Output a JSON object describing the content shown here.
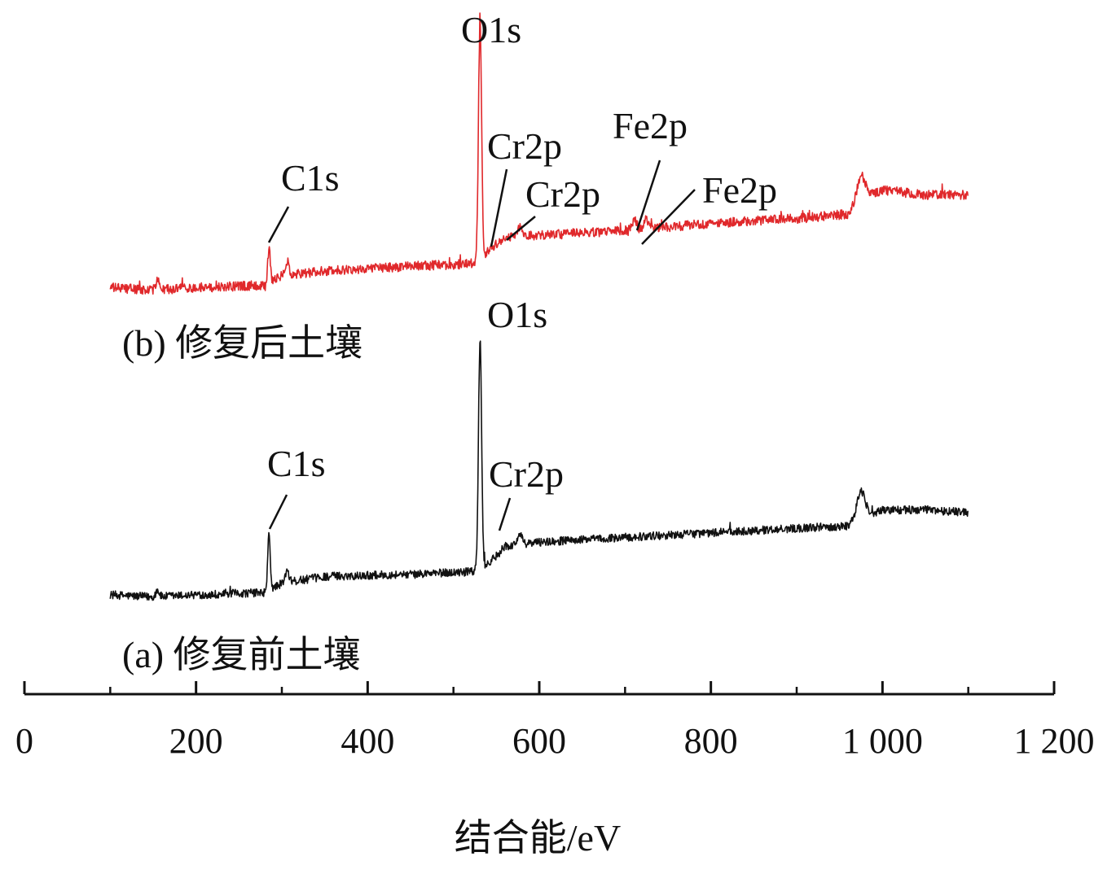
{
  "chart_data": {
    "type": "line",
    "title": "",
    "xlabel": "结合能/eV",
    "ylabel": "",
    "xlim": [
      0,
      1200
    ],
    "x_ticks": [
      {
        "value": 0,
        "label": "0"
      },
      {
        "value": 200,
        "label": "200"
      },
      {
        "value": 400,
        "label": "400"
      },
      {
        "value": 600,
        "label": "600"
      },
      {
        "value": 800,
        "label": "800"
      },
      {
        "value": 1000,
        "label": "1 000"
      },
      {
        "value": 1200,
        "label": "1 200"
      }
    ],
    "x_minor_ticks": [
      100,
      300,
      500,
      700,
      900,
      1100
    ],
    "grid": false,
    "y_axis_visible": false,
    "series": [
      {
        "id": "a",
        "name": "(a) 修复前土壤",
        "color": "#111111",
        "range": [
          100,
          1100
        ],
        "baseline_points": [
          [
            100,
            0.05
          ],
          [
            150,
            0.04
          ],
          [
            200,
            0.05
          ],
          [
            280,
            0.06
          ],
          [
            300,
            0.1
          ],
          [
            350,
            0.13
          ],
          [
            450,
            0.14
          ],
          [
            520,
            0.15
          ],
          [
            530,
            0.16
          ],
          [
            545,
            0.2
          ],
          [
            560,
            0.26
          ],
          [
            600,
            0.28
          ],
          [
            700,
            0.3
          ],
          [
            800,
            0.32
          ],
          [
            900,
            0.34
          ],
          [
            960,
            0.35
          ],
          [
            975,
            0.38
          ],
          [
            1000,
            0.42
          ],
          [
            1050,
            0.42
          ],
          [
            1100,
            0.41
          ]
        ],
        "peaks": [
          {
            "x": 285,
            "height": 0.24,
            "width": 1.5
          },
          {
            "x": 306,
            "height": 0.05,
            "width": 2
          },
          {
            "x": 531,
            "height": 1.0,
            "width": 1.8
          },
          {
            "x": 577,
            "height": 0.04,
            "width": 3
          },
          {
            "x": 975,
            "height": 0.12,
            "width": 5
          },
          {
            "x": 155,
            "height": 0.03,
            "width": 2
          }
        ],
        "noise": 0.018,
        "labels": [
          {
            "text": "C1s",
            "x": 285,
            "callout": true
          },
          {
            "text": "O1s",
            "x": 531,
            "callout": false
          },
          {
            "text": "Cr2p",
            "x": 577,
            "callout": true
          }
        ]
      },
      {
        "id": "b",
        "name": "(b) 修复后土壤",
        "color": "#e0282b",
        "range": [
          100,
          1100
        ],
        "baseline_points": [
          [
            100,
            0.05
          ],
          [
            150,
            0.04
          ],
          [
            200,
            0.05
          ],
          [
            280,
            0.06
          ],
          [
            300,
            0.1
          ],
          [
            350,
            0.12
          ],
          [
            450,
            0.14
          ],
          [
            520,
            0.15
          ],
          [
            530,
            0.16
          ],
          [
            545,
            0.22
          ],
          [
            560,
            0.26
          ],
          [
            600,
            0.27
          ],
          [
            700,
            0.29
          ],
          [
            800,
            0.32
          ],
          [
            900,
            0.34
          ],
          [
            960,
            0.36
          ],
          [
            975,
            0.42
          ],
          [
            1000,
            0.46
          ],
          [
            1050,
            0.44
          ],
          [
            1100,
            0.44
          ]
        ],
        "peaks": [
          {
            "x": 285,
            "height": 0.14,
            "width": 1.5
          },
          {
            "x": 306,
            "height": 0.06,
            "width": 2
          },
          {
            "x": 531,
            "height": 1.0,
            "width": 1.8
          },
          {
            "x": 577,
            "height": 0.04,
            "width": 3
          },
          {
            "x": 711,
            "height": 0.04,
            "width": 2.5
          },
          {
            "x": 725,
            "height": 0.04,
            "width": 2.5
          },
          {
            "x": 975,
            "height": 0.1,
            "width": 5
          },
          {
            "x": 155,
            "height": 0.04,
            "width": 2
          }
        ],
        "noise": 0.02,
        "labels": [
          {
            "text": "C1s",
            "x": 285,
            "callout": true
          },
          {
            "text": "O1s",
            "x": 531,
            "callout": false
          },
          {
            "text": "Cr2p",
            "x": 575,
            "callout": true
          },
          {
            "text": "Cr2p",
            "x": 588,
            "callout": true
          },
          {
            "text": "Fe2p",
            "x": 711,
            "callout": true
          },
          {
            "text": "Fe2p",
            "x": 725,
            "callout": true
          }
        ]
      }
    ]
  }
}
